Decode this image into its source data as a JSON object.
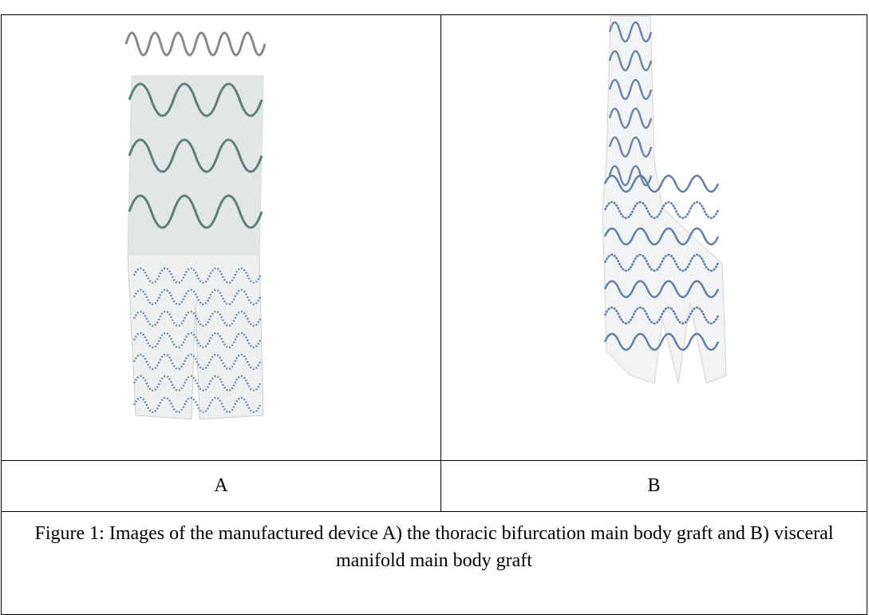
{
  "figure": {
    "labels": [
      "A",
      "B"
    ],
    "caption": "Figure 1: Images of the manufactured device A) the thoracic bifurcation main body graft and B) visceral manifold main body graft"
  }
}
